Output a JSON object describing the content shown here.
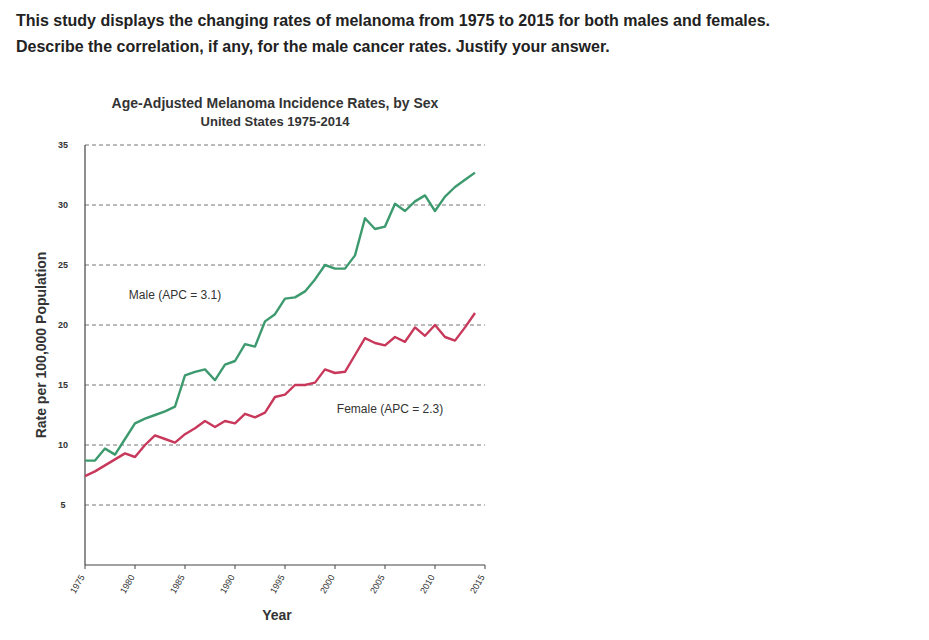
{
  "question": {
    "lines": [
      "This study displays the changing rates of melanoma from 1975 to 2015 for both males and females.",
      "Describe the correlation, if any, for the male cancer rates. Justify your answer."
    ]
  },
  "chart_data": {
    "type": "line",
    "title": "Age-Adjusted Melanoma Incidence Rates, by Sex",
    "subtitle": "United States 1975-2014",
    "x_label": "Year",
    "y_label": "Rate per 100,000 Population",
    "x": [
      1975,
      1976,
      1977,
      1978,
      1979,
      1980,
      1981,
      1982,
      1983,
      1984,
      1985,
      1986,
      1987,
      1988,
      1989,
      1990,
      1991,
      1992,
      1993,
      1994,
      1995,
      1996,
      1997,
      1998,
      1999,
      2000,
      2001,
      2002,
      2003,
      2004,
      2005,
      2006,
      2007,
      2008,
      2009,
      2010,
      2011,
      2012,
      2013,
      2014
    ],
    "series": [
      {
        "name": "Male",
        "color": "#3d9a6e",
        "values": [
          8.7,
          8.7,
          9.7,
          9.2,
          10.5,
          11.8,
          12.2,
          12.5,
          12.8,
          13.2,
          15.8,
          16.1,
          16.3,
          15.4,
          16.7,
          17.0,
          18.4,
          18.2,
          20.3,
          20.9,
          22.2,
          22.3,
          22.8,
          23.8,
          25.0,
          24.7,
          24.7,
          25.8,
          28.9,
          28.0,
          28.2,
          30.1,
          29.5,
          30.3,
          30.8,
          29.5,
          30.7,
          31.5,
          32.1,
          32.7
        ]
      },
      {
        "name": "Female",
        "color": "#c8385a",
        "values": [
          7.4,
          7.8,
          8.3,
          8.8,
          9.3,
          9.0,
          10.0,
          10.8,
          10.5,
          10.2,
          10.9,
          11.4,
          12.0,
          11.5,
          12.0,
          11.8,
          12.6,
          12.3,
          12.7,
          14.0,
          14.2,
          15.0,
          15.0,
          15.2,
          16.3,
          16.0,
          16.1,
          17.5,
          18.9,
          18.5,
          18.3,
          19.0,
          18.6,
          19.8,
          19.1,
          20.0,
          19.0,
          18.7,
          19.8,
          21.0
        ]
      }
    ],
    "annotations": [
      {
        "text": "Male (APC = 3.1)",
        "x": 1984,
        "y": 22.2
      },
      {
        "text": "Female (APC = 2.3)",
        "x": 2005.5,
        "y": 12.7
      }
    ],
    "xlim": [
      1975,
      2015
    ],
    "xticks": [
      1975,
      1980,
      1985,
      1990,
      1995,
      2000,
      2005,
      2010,
      2015
    ],
    "ylim": [
      0,
      35
    ],
    "yticks": [
      5,
      10,
      15,
      20,
      25,
      30,
      35
    ],
    "grid": true
  }
}
